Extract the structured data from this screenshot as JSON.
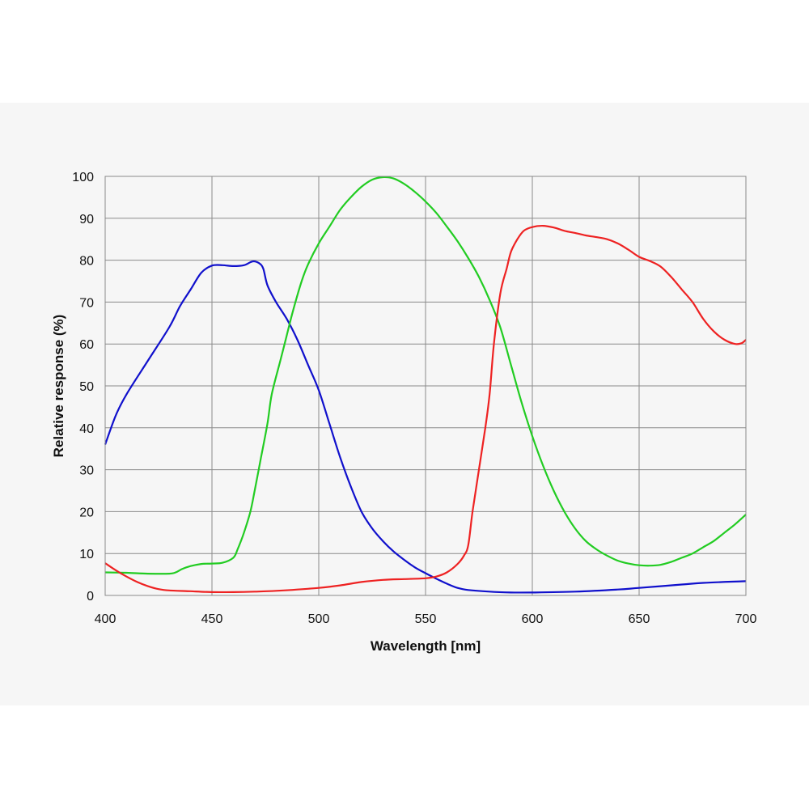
{
  "chart_data": {
    "type": "line",
    "title": "",
    "xlabel": "Wavelength [nm]",
    "ylabel": "Relative response (%)",
    "xlim": [
      400,
      700
    ],
    "ylim": [
      0,
      100
    ],
    "xticks": [
      400,
      450,
      500,
      550,
      600,
      650,
      700
    ],
    "yticks": [
      0,
      10,
      20,
      30,
      40,
      50,
      60,
      70,
      80,
      90,
      100
    ],
    "grid": true,
    "legend": "none",
    "series": [
      {
        "color": "#1010cc",
        "points": [
          [
            400,
            36
          ],
          [
            405,
            43
          ],
          [
            410,
            48
          ],
          [
            420,
            56
          ],
          [
            430,
            64
          ],
          [
            435,
            69
          ],
          [
            440,
            73
          ],
          [
            445,
            77
          ],
          [
            450,
            78.7
          ],
          [
            455,
            78.8
          ],
          [
            460,
            78.6
          ],
          [
            465,
            78.8
          ],
          [
            469,
            79.7
          ],
          [
            472,
            79.3
          ],
          [
            474,
            78
          ],
          [
            476,
            74
          ],
          [
            480,
            70
          ],
          [
            485,
            66
          ],
          [
            490,
            61
          ],
          [
            495,
            55
          ],
          [
            500,
            49
          ],
          [
            505,
            41
          ],
          [
            510,
            33
          ],
          [
            515,
            26
          ],
          [
            520,
            20
          ],
          [
            525,
            16
          ],
          [
            530,
            13
          ],
          [
            535,
            10.5
          ],
          [
            540,
            8.5
          ],
          [
            545,
            6.7
          ],
          [
            550,
            5.3
          ],
          [
            555,
            4
          ],
          [
            560,
            2.8
          ],
          [
            565,
            1.8
          ],
          [
            570,
            1.3
          ],
          [
            580,
            0.9
          ],
          [
            590,
            0.7
          ],
          [
            600,
            0.7
          ],
          [
            620,
            0.9
          ],
          [
            640,
            1.4
          ],
          [
            650,
            1.8
          ],
          [
            670,
            2.6
          ],
          [
            680,
            3
          ],
          [
            700,
            3.4
          ]
        ]
      },
      {
        "color": "#22cc22",
        "points": [
          [
            400,
            5.5
          ],
          [
            410,
            5.4
          ],
          [
            420,
            5.2
          ],
          [
            430,
            5.2
          ],
          [
            433,
            5.5
          ],
          [
            436,
            6.3
          ],
          [
            440,
            7
          ],
          [
            445,
            7.5
          ],
          [
            450,
            7.6
          ],
          [
            455,
            7.8
          ],
          [
            460,
            9
          ],
          [
            462,
            11
          ],
          [
            465,
            15
          ],
          [
            468,
            20
          ],
          [
            470,
            25
          ],
          [
            473,
            33
          ],
          [
            476,
            41
          ],
          [
            478,
            48
          ],
          [
            482,
            56
          ],
          [
            485,
            62
          ],
          [
            488,
            68
          ],
          [
            492,
            75
          ],
          [
            495,
            79
          ],
          [
            500,
            84
          ],
          [
            505,
            88
          ],
          [
            510,
            92
          ],
          [
            515,
            95
          ],
          [
            520,
            97.5
          ],
          [
            525,
            99.2
          ],
          [
            530,
            99.8
          ],
          [
            535,
            99.5
          ],
          [
            540,
            98.2
          ],
          [
            545,
            96.3
          ],
          [
            550,
            94
          ],
          [
            555,
            91.3
          ],
          [
            560,
            88
          ],
          [
            565,
            84.5
          ],
          [
            570,
            80.5
          ],
          [
            575,
            76
          ],
          [
            580,
            70.5
          ],
          [
            585,
            64
          ],
          [
            590,
            55
          ],
          [
            595,
            46
          ],
          [
            600,
            38
          ],
          [
            605,
            31
          ],
          [
            610,
            25
          ],
          [
            615,
            20
          ],
          [
            620,
            16
          ],
          [
            625,
            13
          ],
          [
            630,
            11
          ],
          [
            635,
            9.5
          ],
          [
            640,
            8.3
          ],
          [
            645,
            7.6
          ],
          [
            650,
            7.2
          ],
          [
            655,
            7.1
          ],
          [
            660,
            7.3
          ],
          [
            665,
            8
          ],
          [
            670,
            9
          ],
          [
            675,
            10
          ],
          [
            680,
            11.5
          ],
          [
            685,
            13
          ],
          [
            690,
            15
          ],
          [
            695,
            17
          ],
          [
            700,
            19.3
          ]
        ]
      },
      {
        "color": "#ee2222",
        "points": [
          [
            400,
            7.7
          ],
          [
            405,
            6
          ],
          [
            410,
            4.5
          ],
          [
            415,
            3.2
          ],
          [
            420,
            2.2
          ],
          [
            425,
            1.5
          ],
          [
            430,
            1.2
          ],
          [
            440,
            1
          ],
          [
            450,
            0.8
          ],
          [
            460,
            0.8
          ],
          [
            470,
            0.9
          ],
          [
            480,
            1.1
          ],
          [
            490,
            1.4
          ],
          [
            500,
            1.8
          ],
          [
            510,
            2.4
          ],
          [
            520,
            3.2
          ],
          [
            530,
            3.7
          ],
          [
            540,
            3.9
          ],
          [
            550,
            4.1
          ],
          [
            555,
            4.5
          ],
          [
            560,
            5.5
          ],
          [
            565,
            7.5
          ],
          [
            568,
            9.5
          ],
          [
            570,
            12
          ],
          [
            572,
            20
          ],
          [
            575,
            30
          ],
          [
            578,
            40
          ],
          [
            580,
            48
          ],
          [
            582,
            60
          ],
          [
            585,
            72
          ],
          [
            588,
            78
          ],
          [
            590,
            82
          ],
          [
            593,
            85
          ],
          [
            596,
            87
          ],
          [
            600,
            87.9
          ],
          [
            605,
            88.2
          ],
          [
            610,
            87.8
          ],
          [
            615,
            87
          ],
          [
            620,
            86.5
          ],
          [
            625,
            85.9
          ],
          [
            630,
            85.5
          ],
          [
            635,
            85
          ],
          [
            640,
            84
          ],
          [
            645,
            82.5
          ],
          [
            650,
            80.8
          ],
          [
            655,
            79.8
          ],
          [
            660,
            78.5
          ],
          [
            665,
            76
          ],
          [
            670,
            73
          ],
          [
            675,
            70
          ],
          [
            680,
            66
          ],
          [
            685,
            63
          ],
          [
            690,
            61
          ],
          [
            695,
            60
          ],
          [
            698,
            60.2
          ],
          [
            700,
            61
          ]
        ]
      }
    ]
  }
}
